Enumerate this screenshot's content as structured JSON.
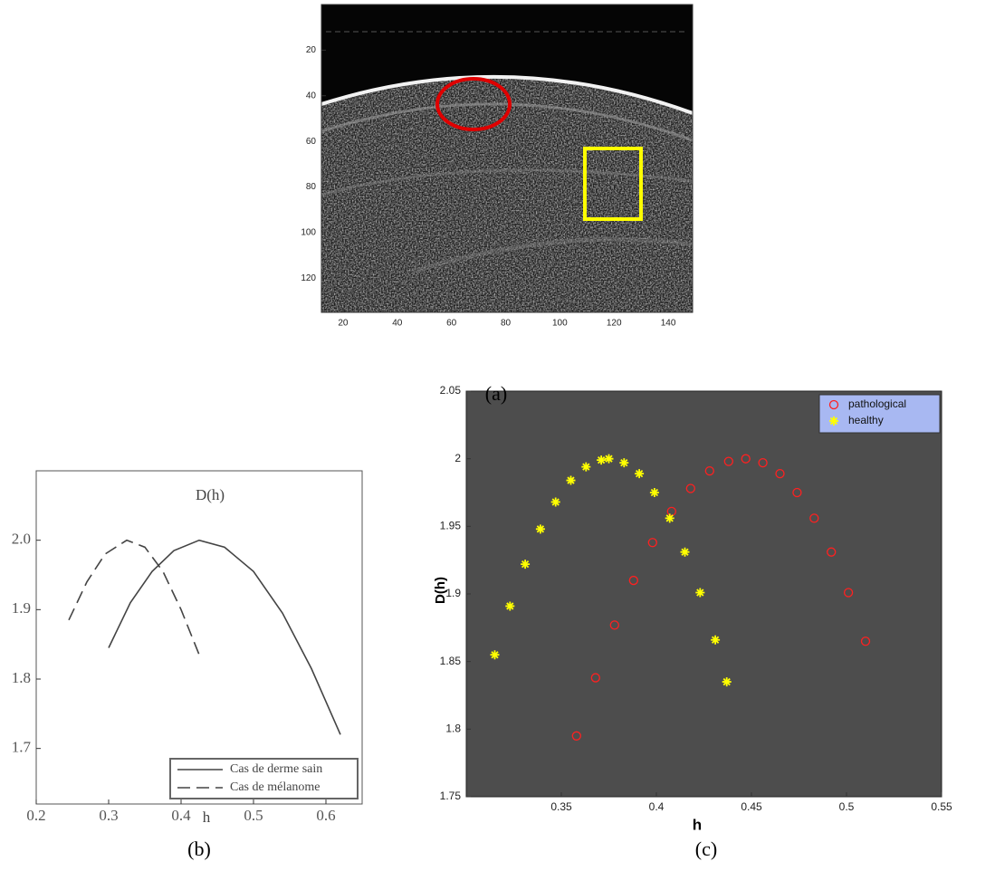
{
  "chart_data": [
    {
      "type": "image",
      "caption": "(a)",
      "xlim": [
        12,
        149
      ],
      "xticks": [
        20,
        40,
        60,
        80,
        100,
        120,
        140
      ],
      "ylim": [
        135,
        0
      ],
      "yticks": [
        20,
        40,
        60,
        80,
        100,
        120
      ]
    },
    {
      "type": "line",
      "caption": "(b)",
      "title": "D(h)",
      "x_label": "h",
      "xlim": [
        0.2,
        0.65
      ],
      "xticks": [
        0.2,
        0.3,
        0.4,
        0.5,
        0.6
      ],
      "ylim": [
        1.62,
        2.1
      ],
      "yticks": [
        {
          "value": 2,
          "label": "2.0"
        },
        {
          "value": 1.9,
          "label": "1.9"
        },
        {
          "value": 1.8,
          "label": "1.8"
        },
        {
          "value": 1.7,
          "label": "1.7"
        }
      ],
      "legend": "lower right",
      "series": [
        {
          "name": "Cas de derme sain",
          "color": "#444444",
          "linestyle": "solid",
          "x": [
            0.3,
            0.33,
            0.36,
            0.39,
            0.425,
            0.46,
            0.5,
            0.54,
            0.58,
            0.62
          ],
          "values": [
            1.845,
            1.91,
            1.955,
            1.985,
            2.0,
            1.99,
            1.955,
            1.895,
            1.815,
            1.72
          ]
        },
        {
          "name": "Cas de mélanome",
          "color": "#444444",
          "linestyle": "dashed",
          "x": [
            0.245,
            0.27,
            0.295,
            0.325,
            0.35,
            0.375,
            0.4,
            0.425
          ],
          "values": [
            1.885,
            1.94,
            1.98,
            2.0,
            1.99,
            1.955,
            1.9,
            1.835
          ]
        }
      ]
    },
    {
      "type": "scatter",
      "caption": "(c)",
      "x_label": "h",
      "y_label": "D(h)",
      "xlim": [
        0.3,
        0.55
      ],
      "xticks": [
        0.35,
        0.4,
        0.45,
        0.5,
        0.55
      ],
      "ylim": [
        1.75,
        2.05
      ],
      "yticks": [
        1.75,
        1.8,
        1.85,
        1.9,
        1.95,
        2,
        2.05
      ],
      "background": "#4d4d4d",
      "legend": "upper right",
      "series": [
        {
          "name": "pathological",
          "color": "#ff2020",
          "marker": "o",
          "x": [
            0.358,
            0.368,
            0.378,
            0.388,
            0.398,
            0.408,
            0.418,
            0.428,
            0.438,
            0.447,
            0.456,
            0.465,
            0.474,
            0.483,
            0.492,
            0.501,
            0.51
          ],
          "values": [
            1.795,
            1.838,
            1.877,
            1.91,
            1.938,
            1.961,
            1.978,
            1.991,
            1.998,
            2.0,
            1.997,
            1.989,
            1.975,
            1.956,
            1.931,
            1.901,
            1.865
          ]
        },
        {
          "name": "healthy",
          "color": "#ffff00",
          "marker": "*",
          "x": [
            0.315,
            0.323,
            0.331,
            0.339,
            0.347,
            0.355,
            0.363,
            0.371,
            0.375,
            0.383,
            0.391,
            0.399,
            0.407,
            0.415,
            0.423,
            0.431,
            0.437
          ],
          "values": [
            1.855,
            1.891,
            1.922,
            1.948,
            1.968,
            1.984,
            1.994,
            1.999,
            2.0,
            1.997,
            1.989,
            1.975,
            1.956,
            1.931,
            1.901,
            1.866,
            1.835
          ]
        }
      ]
    }
  ]
}
